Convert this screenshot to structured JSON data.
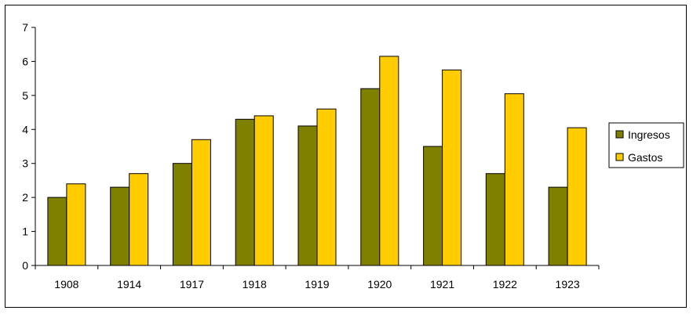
{
  "chart_data": {
    "type": "bar",
    "categories": [
      "1908",
      "1914",
      "1917",
      "1918",
      "1919",
      "1920",
      "1921",
      "1922",
      "1923"
    ],
    "series": [
      {
        "name": "Ingresos",
        "values": [
          2.0,
          2.3,
          3.0,
          4.3,
          4.1,
          5.2,
          3.5,
          2.7,
          2.3
        ],
        "color": "#808000"
      },
      {
        "name": "Gastos",
        "values": [
          2.4,
          2.7,
          3.7,
          4.4,
          4.6,
          6.15,
          5.75,
          5.05,
          4.05
        ],
        "color": "#ffcc00"
      }
    ],
    "title": "",
    "xlabel": "",
    "ylabel": "",
    "ylim": [
      0,
      7
    ],
    "yticks": [
      "0",
      "1",
      "2",
      "3",
      "4",
      "5",
      "6",
      "7"
    ],
    "grid": false,
    "legend_position": "right"
  }
}
